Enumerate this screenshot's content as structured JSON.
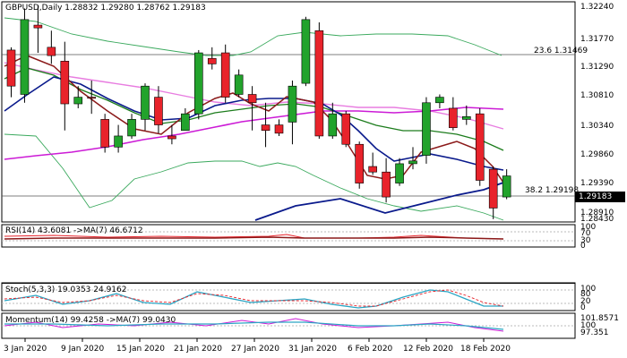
{
  "main": {
    "info": "GBPUSD,Daily  1.28832 1.29280 1.28762 1.29183",
    "ticks": [
      "1.32240",
      "1.31770",
      "1.31290",
      "1.30810",
      "1.30340",
      "1.29860",
      "1.29390",
      "1.28910",
      "1.28430"
    ],
    "current_price": "1.29183",
    "fib_upper": "23.6 1.31469",
    "fib_lower": "38.2 1.29198"
  },
  "rsi": {
    "label": "RSI(14) 43.6081  ->MA(7) 46.6712",
    "ticks": [
      "100",
      "70",
      "30",
      "0"
    ]
  },
  "stoch": {
    "label": "Stoch(5,3,3) 19.0353 24.9162",
    "ticks": [
      "100",
      "80",
      "20",
      "0"
    ]
  },
  "momentum": {
    "label": "Momentum(14) 99.4258  ->MA(7) 99.0430",
    "ticks": [
      "101.8571",
      "100",
      "97.351"
    ]
  },
  "dates": [
    "3 Jan 2020",
    "9 Jan 2020",
    "15 Jan 2020",
    "21 Jan 2020",
    "27 Jan 2020",
    "31 Jan 2020",
    "6 Feb 2020",
    "12 Feb 2020",
    "18 Feb 2020"
  ],
  "colors": {
    "bull": "#22a32c",
    "bear": "#e8232b",
    "ma_pink": "#e87de0",
    "ma_magenta": "#cc1bd6",
    "ma_navy": "#0a1a8c",
    "ma_green": "#1c7c1c",
    "ma_darkred": "#8b1a1a",
    "bollinger": "#3aa95d"
  },
  "chart_data": {
    "type": "candlestick",
    "candles": [
      [
        1.3145,
        1.315,
        1.306,
        1.308
      ],
      [
        1.3065,
        1.322,
        1.305,
        1.32
      ],
      [
        1.319,
        1.3225,
        1.314,
        1.3185
      ],
      [
        1.315,
        1.318,
        1.312,
        1.3135
      ],
      [
        1.3125,
        1.316,
        1.3,
        1.3048
      ],
      [
        1.3048,
        1.308,
        1.304,
        1.306
      ],
      [
        1.306,
        1.309,
        1.303,
        1.3058
      ],
      [
        1.302,
        1.303,
        1.296,
        1.297
      ],
      [
        1.297,
        1.301,
        1.296,
        1.299
      ],
      [
        1.299,
        1.303,
        1.2985,
        1.302
      ],
      [
        1.302,
        1.3085,
        1.3,
        1.308
      ],
      [
        1.306,
        1.308,
        1.2995,
        1.301
      ],
      [
        1.299,
        1.301,
        1.2975,
        1.2985
      ],
      [
        1.3,
        1.304,
        1.3,
        1.303
      ],
      [
        1.303,
        1.3145,
        1.302,
        1.314
      ],
      [
        1.313,
        1.315,
        1.311,
        1.312
      ],
      [
        1.314,
        1.3155,
        1.305,
        1.306
      ],
      [
        1.3065,
        1.311,
        1.306,
        1.31
      ],
      [
        1.3065,
        1.308,
        1.3,
        1.305
      ],
      [
        1.301,
        1.305,
        1.297,
        1.3
      ],
      [
        1.301,
        1.302,
        1.299,
        1.2995
      ],
      [
        1.3015,
        1.309,
        1.2975,
        1.308
      ],
      [
        1.3085,
        1.3205,
        1.308,
        1.32
      ],
      [
        1.318,
        1.3195,
        1.2985,
        1.299
      ],
      [
        1.299,
        1.305,
        1.2985,
        1.303
      ],
      [
        1.303,
        1.3035,
        1.297,
        1.2975
      ],
      [
        1.2975,
        1.298,
        1.2895,
        1.2905
      ],
      [
        1.2935,
        1.296,
        1.292,
        1.2925
      ],
      [
        1.2925,
        1.295,
        1.287,
        1.288
      ],
      [
        1.2905,
        1.295,
        1.29,
        1.294
      ],
      [
        1.294,
        1.297,
        1.293,
        1.2945
      ],
      [
        1.2955,
        1.306,
        1.294,
        1.305
      ],
      [
        1.305,
        1.3065,
        1.304,
        1.306
      ],
      [
        1.304,
        1.306,
        1.3,
        1.3005
      ],
      [
        1.302,
        1.3045,
        1.301,
        1.3025
      ],
      [
        1.303,
        1.304,
        1.29,
        1.291
      ],
      [
        1.293,
        1.2935,
        1.284,
        1.286
      ],
      [
        1.288,
        1.293,
        1.2876,
        1.2918
      ]
    ],
    "upper_ticks": [
      1.3224,
      1.3177,
      1.3129,
      1.3081,
      1.3034,
      1.2986,
      1.2939,
      1.2891,
      1.2843
    ]
  }
}
